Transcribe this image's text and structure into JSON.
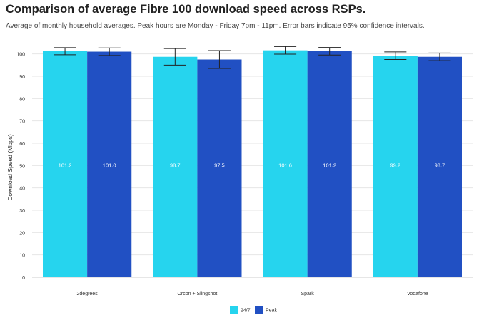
{
  "header": {
    "title": "Comparison of average Fibre 100 download speed across RSPs.",
    "subtitle": "Average of monthly household averages.  Peak hours are Monday - Friday 7pm - 11pm.  Error bars indicate 95% confidence intervals."
  },
  "chart_data": {
    "type": "bar",
    "categories": [
      "2degrees",
      "Orcon + Slingshot",
      "Spark",
      "Vodafone"
    ],
    "series": [
      {
        "name": "24/7",
        "color": "#26d4ee",
        "values": [
          101.2,
          98.7,
          101.6,
          99.2
        ],
        "labels": [
          "101.2",
          "98.7",
          "101.6",
          "99.2"
        ],
        "ci_low": [
          99.6,
          95.0,
          99.9,
          97.5
        ],
        "ci_high": [
          102.8,
          102.4,
          103.3,
          100.9
        ]
      },
      {
        "name": "Peak",
        "color": "#2150c3",
        "values": [
          101.0,
          97.5,
          101.2,
          98.7
        ],
        "labels": [
          "101.0",
          "97.5",
          "101.2",
          "98.7"
        ],
        "ci_low": [
          99.3,
          93.5,
          99.5,
          97.0
        ],
        "ci_high": [
          102.7,
          101.5,
          102.9,
          100.4
        ]
      }
    ],
    "ylabel": "Download Speed (Mbps)",
    "xlabel": "",
    "ylim": [
      0,
      105
    ],
    "yticks": [
      0,
      10,
      20,
      30,
      40,
      50,
      60,
      70,
      80,
      90,
      100
    ],
    "grid": true,
    "legend_position": "bottom-center",
    "label_color": "#ffffff",
    "error_bar_color": "#222222",
    "grid_color": "#e6e6e6"
  }
}
